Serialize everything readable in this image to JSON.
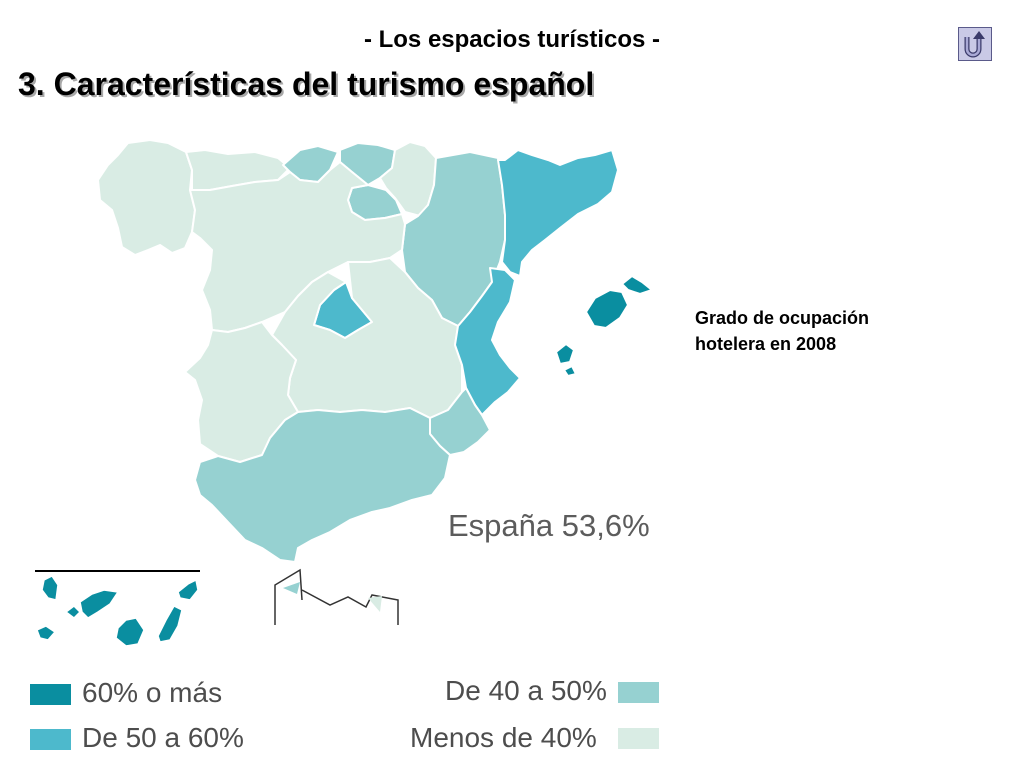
{
  "slide": {
    "subtitle": "- Los espacios turísticos -",
    "title": "3. Características del turismo español",
    "return_icon": "return-arrow-icon"
  },
  "map": {
    "caption_line1": "Grado de ocupación",
    "caption_line2": "hotelera en 2008",
    "national_total": "España 53,6%",
    "colors": {
      "class_60_plus": "#0a8ea0",
      "class_50_60": "#4db9cc",
      "class_40_50": "#96d1d1",
      "class_below_40": "#d9ece4"
    },
    "regions": [
      {
        "region": "Galicia",
        "class": "below_40"
      },
      {
        "region": "Asturias",
        "class": "below_40"
      },
      {
        "region": "Cantabria",
        "class": "40_50"
      },
      {
        "region": "País Vasco",
        "class": "40_50"
      },
      {
        "region": "Navarra",
        "class": "below_40"
      },
      {
        "region": "La Rioja",
        "class": "40_50"
      },
      {
        "region": "Aragón",
        "class": "40_50"
      },
      {
        "region": "Cataluña",
        "class": "50_60"
      },
      {
        "region": "Castilla y León",
        "class": "below_40"
      },
      {
        "region": "Madrid",
        "class": "50_60"
      },
      {
        "region": "Castilla-La Mancha",
        "class": "below_40"
      },
      {
        "region": "Comunidad Valenciana",
        "class": "50_60"
      },
      {
        "region": "Extremadura",
        "class": "below_40"
      },
      {
        "region": "Andalucía",
        "class": "40_50"
      },
      {
        "region": "Murcia",
        "class": "40_50"
      },
      {
        "region": "Islas Baleares",
        "class": "60_plus"
      },
      {
        "region": "Islas Canarias",
        "class": "60_plus"
      },
      {
        "region": "Ceuta",
        "class": "40_50"
      },
      {
        "region": "Melilla",
        "class": "below_40"
      }
    ]
  },
  "legend": {
    "items": [
      {
        "label": "60% o más",
        "color": "#0a8ea0"
      },
      {
        "label": "De 50 a 60%",
        "color": "#4db9cc"
      },
      {
        "label": "De 40 a 50%",
        "color": "#96d1d1"
      },
      {
        "label": "Menos de 40%",
        "color": "#d9ece4"
      }
    ]
  }
}
